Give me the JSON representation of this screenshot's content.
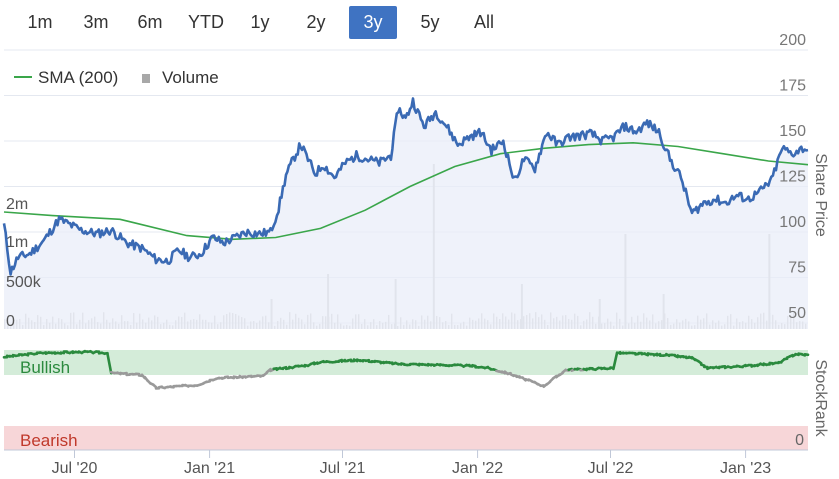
{
  "range_selector": {
    "buttons": [
      "1m",
      "3m",
      "6m",
      "YTD",
      "1y",
      "2y",
      "3y",
      "5y",
      "All"
    ],
    "selected": "3y"
  },
  "legend": {
    "sma_label": "SMA (200)",
    "volume_label": "Volume"
  },
  "colors": {
    "price": "#3a6ab4",
    "sma": "#3aa64a",
    "volume": "#c8c8c8",
    "bullish_band": "#d4ecd9",
    "bearish_band": "#f7d6d8",
    "rank_bullish": "#2b8a3e",
    "rank_neutral": "#9a9a9a",
    "active_button": "#3f73c2"
  },
  "chart_data": {
    "type": "line",
    "x_ticks": [
      "Jul '20",
      "Jan '21",
      "Jul '21",
      "Jan '22",
      "Jul '22",
      "Jan '23"
    ],
    "x_range": [
      "2020-03-27",
      "2023-03-27"
    ],
    "price_axis": {
      "title": "Share Price",
      "ticks": [
        "50",
        "75",
        "100",
        "125",
        "150",
        "175",
        "200"
      ],
      "range": [
        50,
        200
      ]
    },
    "volume_axis": {
      "ticks": [
        "0",
        "500k",
        "1m",
        "2m"
      ]
    },
    "stockrank_axis": {
      "title": "StockRank",
      "ticks": [
        "0"
      ],
      "bullish_label": "Bullish",
      "bearish_label": "Bearish"
    },
    "series": [
      {
        "name": "Share Price",
        "points": [
          [
            "2020-03-27",
            104
          ],
          [
            "2020-04-05",
            78
          ],
          [
            "2020-04-15",
            86
          ],
          [
            "2020-05-01",
            88
          ],
          [
            "2020-05-20",
            95
          ],
          [
            "2020-06-10",
            107
          ],
          [
            "2020-06-25",
            104
          ],
          [
            "2020-07-10",
            101
          ],
          [
            "2020-08-01",
            99
          ],
          [
            "2020-08-20",
            101
          ],
          [
            "2020-09-10",
            94
          ],
          [
            "2020-10-01",
            91
          ],
          [
            "2020-10-20",
            85
          ],
          [
            "2020-11-05",
            84
          ],
          [
            "2020-11-20",
            90
          ],
          [
            "2020-12-05",
            86
          ],
          [
            "2020-12-20",
            88
          ],
          [
            "2021-01-05",
            97
          ],
          [
            "2021-01-20",
            94
          ],
          [
            "2021-02-05",
            97
          ],
          [
            "2021-02-20",
            100
          ],
          [
            "2021-03-10",
            99
          ],
          [
            "2021-03-25",
            100
          ],
          [
            "2021-04-05",
            113
          ],
          [
            "2021-04-15",
            131
          ],
          [
            "2021-04-25",
            140
          ],
          [
            "2021-05-05",
            148
          ],
          [
            "2021-05-15",
            140
          ],
          [
            "2021-05-25",
            132
          ],
          [
            "2021-06-05",
            137
          ],
          [
            "2021-06-20",
            130
          ],
          [
            "2021-07-05",
            138
          ],
          [
            "2021-07-20",
            142
          ],
          [
            "2021-08-05",
            140
          ],
          [
            "2021-08-20",
            138
          ],
          [
            "2021-09-05",
            142
          ],
          [
            "2021-09-15",
            168
          ],
          [
            "2021-09-25",
            162
          ],
          [
            "2021-10-05",
            172
          ],
          [
            "2021-10-20",
            158
          ],
          [
            "2021-11-05",
            166
          ],
          [
            "2021-11-20",
            158
          ],
          [
            "2021-12-05",
            148
          ],
          [
            "2021-12-20",
            152
          ],
          [
            "2022-01-05",
            155
          ],
          [
            "2022-01-20",
            145
          ],
          [
            "2022-02-05",
            150
          ],
          [
            "2022-02-20",
            128
          ],
          [
            "2022-03-05",
            140
          ],
          [
            "2022-03-20",
            135
          ],
          [
            "2022-04-05",
            155
          ],
          [
            "2022-04-20",
            148
          ],
          [
            "2022-05-05",
            152
          ],
          [
            "2022-05-20",
            153
          ],
          [
            "2022-06-05",
            154
          ],
          [
            "2022-06-20",
            150
          ],
          [
            "2022-07-05",
            152
          ],
          [
            "2022-07-20",
            158
          ],
          [
            "2022-08-05",
            155
          ],
          [
            "2022-08-20",
            160
          ],
          [
            "2022-09-05",
            155
          ],
          [
            "2022-09-20",
            140
          ],
          [
            "2022-10-05",
            130
          ],
          [
            "2022-10-20",
            110
          ],
          [
            "2022-11-05",
            116
          ],
          [
            "2022-11-20",
            118
          ],
          [
            "2022-12-05",
            116
          ],
          [
            "2022-12-20",
            120
          ],
          [
            "2023-01-05",
            118
          ],
          [
            "2023-01-20",
            122
          ],
          [
            "2023-02-05",
            128
          ],
          [
            "2023-02-20",
            146
          ],
          [
            "2023-03-05",
            143
          ],
          [
            "2023-03-20",
            146
          ],
          [
            "2023-03-27",
            145
          ]
        ]
      },
      {
        "name": "SMA (200)",
        "points": [
          [
            "2020-03-27",
            111
          ],
          [
            "2020-06-01",
            109
          ],
          [
            "2020-09-01",
            107
          ],
          [
            "2020-12-01",
            98
          ],
          [
            "2021-02-01",
            96
          ],
          [
            "2021-04-01",
            97
          ],
          [
            "2021-06-01",
            102
          ],
          [
            "2021-08-01",
            112
          ],
          [
            "2021-10-01",
            125
          ],
          [
            "2021-12-01",
            136
          ],
          [
            "2022-02-01",
            143
          ],
          [
            "2022-04-01",
            146
          ],
          [
            "2022-06-01",
            148
          ],
          [
            "2022-08-01",
            149
          ],
          [
            "2022-10-01",
            147
          ],
          [
            "2022-12-01",
            143
          ],
          [
            "2023-02-01",
            139
          ],
          [
            "2023-03-27",
            137
          ]
        ]
      }
    ],
    "volume_spikes": [
      [
        "2021-03-25",
        0.3
      ],
      [
        "2021-06-10",
        0.55
      ],
      [
        "2021-09-10",
        0.5
      ],
      [
        "2021-11-01",
        1.65
      ],
      [
        "2022-03-01",
        0.45
      ],
      [
        "2022-06-15",
        0.3
      ],
      [
        "2022-07-20",
        0.95
      ],
      [
        "2022-09-10",
        0.35
      ],
      [
        "2023-02-01",
        0.95
      ]
    ],
    "stockrank": [
      [
        "2020-03-27",
        93
      ],
      [
        "2020-05-15",
        97
      ],
      [
        "2020-07-15",
        98
      ],
      [
        "2020-08-15",
        97
      ],
      [
        "2020-08-20",
        77
      ],
      [
        "2020-10-01",
        75
      ],
      [
        "2020-10-20",
        62
      ],
      [
        "2020-12-15",
        65
      ],
      [
        "2021-01-10",
        72
      ],
      [
        "2021-03-15",
        74
      ],
      [
        "2021-03-25",
        80
      ],
      [
        "2021-05-15",
        85
      ],
      [
        "2021-06-01",
        88
      ],
      [
        "2021-07-25",
        90
      ],
      [
        "2021-09-15",
        86
      ],
      [
        "2021-11-15",
        85
      ],
      [
        "2021-12-25",
        84
      ],
      [
        "2022-01-15",
        82
      ],
      [
        "2022-02-15",
        76
      ],
      [
        "2022-04-01",
        64
      ],
      [
        "2022-05-01",
        80
      ],
      [
        "2022-07-05",
        82
      ],
      [
        "2022-07-10",
        97
      ],
      [
        "2022-09-15",
        95
      ],
      [
        "2022-10-20",
        92
      ],
      [
        "2022-11-10",
        82
      ],
      [
        "2023-01-01",
        84
      ],
      [
        "2023-02-15",
        87
      ],
      [
        "2023-03-10",
        96
      ],
      [
        "2023-03-27",
        95
      ]
    ]
  }
}
